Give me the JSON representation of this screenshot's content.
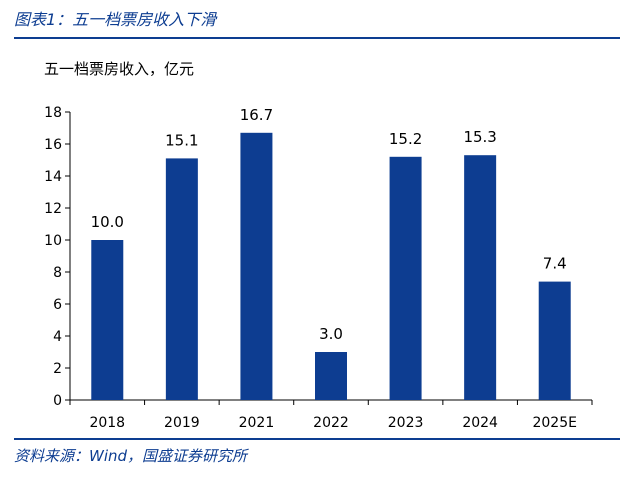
{
  "figure": {
    "title": "图表1：五一档票房收入下滑",
    "source": "资料来源：Wind，国盛证券研究所"
  },
  "chart_data": {
    "type": "bar",
    "unit_label": "五一档票房收入，亿元",
    "categories": [
      "2018",
      "2019",
      "2021",
      "2022",
      "2023",
      "2024",
      "2025E"
    ],
    "values": [
      10.0,
      15.1,
      16.7,
      3.0,
      15.2,
      15.3,
      7.4
    ],
    "value_labels": [
      "10.0",
      "15.1",
      "16.7",
      "3.0",
      "15.2",
      "15.3",
      "7.4"
    ],
    "ylim": [
      0,
      18
    ],
    "yticks": [
      0,
      2,
      4,
      6,
      8,
      10,
      12,
      14,
      16,
      18
    ],
    "grid": false,
    "legend": "none",
    "bar_color": "#0d3d91"
  }
}
